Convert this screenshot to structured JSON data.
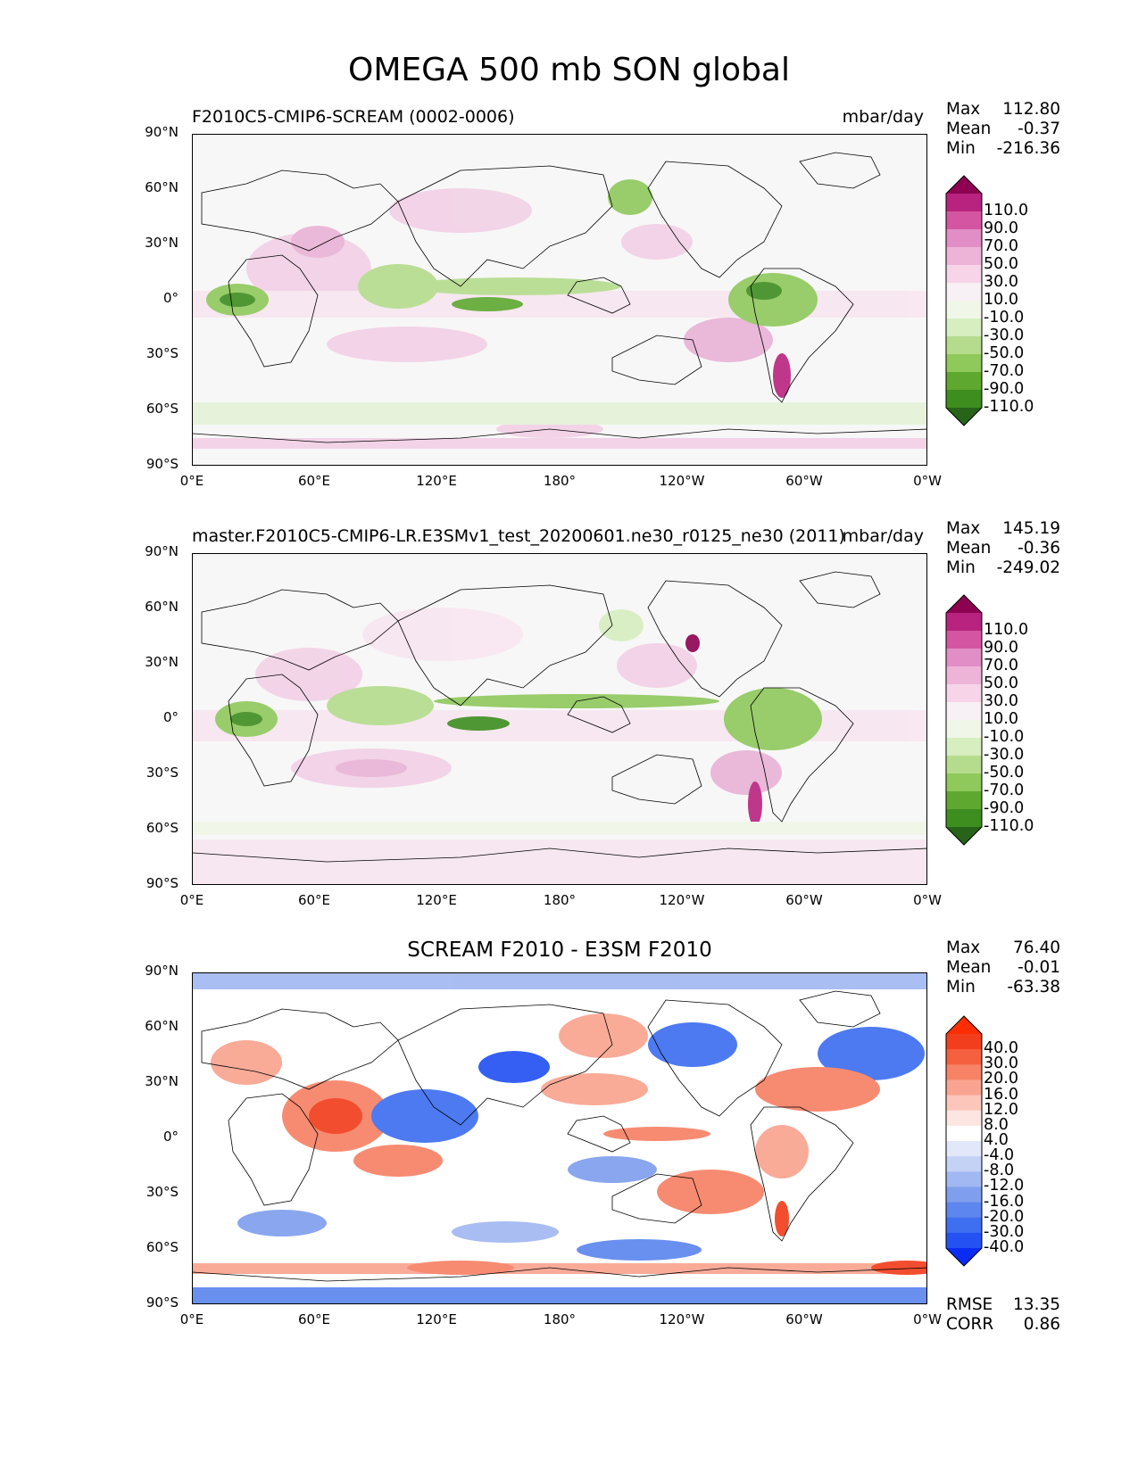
{
  "figure": {
    "title": "OMEGA 500 mb SON global"
  },
  "axes": {
    "lat_ticks": [
      "90°N",
      "60°N",
      "30°N",
      "0°",
      "30°S",
      "60°S",
      "90°S"
    ],
    "lon_ticks": [
      "0°E",
      "60°E",
      "120°E",
      "180°",
      "120°W",
      "60°W",
      "0°W"
    ]
  },
  "panels": [
    {
      "title_left": "F2010C5-CMIP6-SCREAM (0002-0006)",
      "units": "mbar/day",
      "stats": [
        {
          "label": "Max",
          "value": "112.80"
        },
        {
          "label": "Mean",
          "value": "-0.37"
        },
        {
          "label": "Min",
          "value": "-216.36"
        }
      ],
      "colorbar": {
        "colors": [
          "#276419",
          "#3d8d1f",
          "#5ea830",
          "#8fc85b",
          "#b5dc8d",
          "#d6eec0",
          "#f0f7e8",
          "#f7f0f4",
          "#f7d4e8",
          "#eeb4d8",
          "#e08ec5",
          "#d456a2",
          "#b8237f",
          "#8e0152"
        ],
        "labels": [
          "110.0",
          "90.0",
          "70.0",
          "50.0",
          "30.0",
          "10.0",
          "-10.0",
          "-30.0",
          "-50.0",
          "-70.0",
          "-90.0",
          "-110.0"
        ]
      }
    },
    {
      "title_left": "master.F2010C5-CMIP6-LR.E3SMv1_test_20200601.ne30_r0125_ne30 (2011)",
      "units": "mbar/day",
      "stats": [
        {
          "label": "Max",
          "value": "145.19"
        },
        {
          "label": "Mean",
          "value": "-0.36"
        },
        {
          "label": "Min",
          "value": "-249.02"
        }
      ],
      "colorbar": {
        "colors": [
          "#276419",
          "#3d8d1f",
          "#5ea830",
          "#8fc85b",
          "#b5dc8d",
          "#d6eec0",
          "#f0f7e8",
          "#f7f0f4",
          "#f7d4e8",
          "#eeb4d8",
          "#e08ec5",
          "#d456a2",
          "#b8237f",
          "#8e0152"
        ],
        "labels": [
          "110.0",
          "90.0",
          "70.0",
          "50.0",
          "30.0",
          "10.0",
          "-10.0",
          "-30.0",
          "-50.0",
          "-70.0",
          "-90.0",
          "-110.0"
        ]
      }
    },
    {
      "title_center": "SCREAM F2010 - E3SM F2010",
      "stats": [
        {
          "label": "Max",
          "value": "76.40"
        },
        {
          "label": "Mean",
          "value": "-0.01"
        },
        {
          "label": "Min",
          "value": "-63.38"
        }
      ],
      "colorbar": {
        "colors": [
          "#0a2cf5",
          "#2452f2",
          "#3e6ff0",
          "#5d86ee",
          "#7f9fee",
          "#a2b8f2",
          "#c4d2f6",
          "#e2e8fa",
          "#ffffff",
          "#fde6e2",
          "#fcc6bb",
          "#f9a490",
          "#f78266",
          "#f5603f",
          "#f33e1e",
          "#ff2e00"
        ],
        "labels": [
          "40.0",
          "30.0",
          "20.0",
          "16.0",
          "12.0",
          "8.0",
          "4.0",
          "-4.0",
          "-8.0",
          "-12.0",
          "-16.0",
          "-20.0",
          "-30.0",
          "-40.0"
        ]
      },
      "bottom_stats": [
        {
          "label": "RMSE",
          "value": "13.35"
        },
        {
          "label": "CORR",
          "value": "0.86"
        }
      ]
    }
  ]
}
